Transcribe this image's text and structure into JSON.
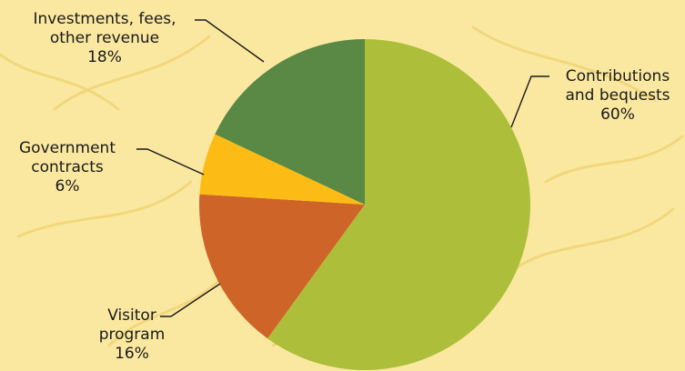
{
  "chart_data": {
    "type": "pie",
    "title": "",
    "start_angle_deg": 0,
    "direction": "clockwise",
    "slices": [
      {
        "label_lines": [
          "Contributions",
          "and bequests"
        ],
        "value": 60,
        "pct": "60%",
        "color": "#adbf3a"
      },
      {
        "label_lines": [
          "Visitor",
          "program"
        ],
        "value": 16,
        "pct": "16%",
        "color": "#cf6428"
      },
      {
        "label_lines": [
          "Government",
          "contracts"
        ],
        "value": 6,
        "pct": "6%",
        "color": "#fdbb16"
      },
      {
        "label_lines": [
          "Investments, fees,",
          "other revenue"
        ],
        "value": 18,
        "pct": "18%",
        "color": "#5a8845"
      }
    ]
  }
}
